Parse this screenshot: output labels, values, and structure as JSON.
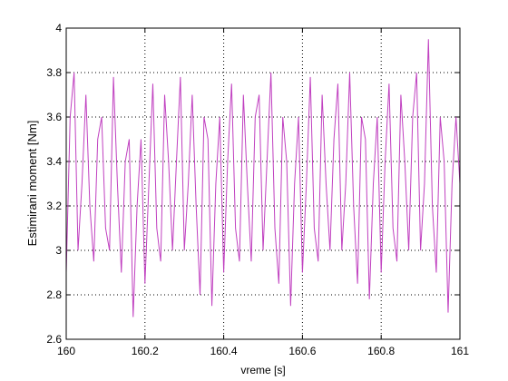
{
  "chart_data": {
    "type": "line",
    "xlabel": "vreme [s]",
    "ylabel": "Estimirani moment [Nm]",
    "x": [
      160,
      160.01,
      160.02,
      160.03,
      160.04,
      160.05,
      160.06,
      160.07,
      160.08,
      160.09,
      160.1,
      160.11,
      160.12,
      160.13,
      160.14,
      160.15,
      160.16,
      160.17,
      160.18,
      160.19,
      160.2,
      160.21,
      160.22,
      160.23,
      160.24,
      160.25,
      160.26,
      160.27,
      160.28,
      160.29,
      160.3,
      160.31,
      160.32,
      160.33,
      160.34,
      160.35,
      160.36,
      160.37,
      160.38,
      160.39,
      160.4,
      160.41,
      160.42,
      160.43,
      160.44,
      160.45,
      160.46,
      160.47,
      160.48,
      160.49,
      160.5,
      160.51,
      160.52,
      160.53,
      160.54,
      160.55,
      160.56,
      160.57,
      160.58,
      160.59,
      160.6,
      160.61,
      160.62,
      160.63,
      160.64,
      160.65,
      160.66,
      160.67,
      160.68,
      160.69,
      160.7,
      160.71,
      160.72,
      160.73,
      160.74,
      160.75,
      160.76,
      160.77,
      160.78,
      160.79,
      160.8,
      160.81,
      160.82,
      160.83,
      160.84,
      160.85,
      160.86,
      160.87,
      160.88,
      160.89,
      160.9,
      160.91,
      160.92,
      160.93,
      160.94,
      160.95,
      160.96,
      160.97,
      160.98,
      160.99,
      161
    ],
    "series": [
      {
        "color": "#c040c0",
        "values": [
          2.9,
          3.6,
          3.8,
          3.0,
          3.3,
          3.7,
          3.2,
          2.95,
          3.5,
          3.6,
          3.1,
          3.0,
          3.78,
          3.3,
          2.9,
          3.4,
          3.5,
          2.7,
          3.2,
          3.5,
          2.85,
          3.3,
          3.75,
          3.1,
          2.95,
          3.7,
          3.4,
          3.0,
          3.4,
          3.78,
          3.0,
          3.3,
          3.7,
          3.2,
          2.8,
          3.6,
          3.5,
          2.75,
          3.3,
          3.6,
          2.9,
          3.4,
          3.75,
          3.1,
          2.95,
          3.7,
          3.3,
          2.95,
          3.6,
          3.7,
          3.0,
          3.4,
          3.8,
          3.1,
          2.85,
          3.6,
          3.4,
          2.75,
          3.3,
          3.6,
          2.9,
          3.3,
          3.78,
          3.1,
          2.95,
          3.7,
          3.3,
          3.0,
          3.5,
          3.75,
          3.0,
          3.3,
          3.8,
          3.2,
          2.85,
          3.6,
          3.5,
          2.78,
          3.3,
          3.6,
          2.9,
          3.4,
          3.75,
          3.1,
          2.95,
          3.7,
          3.4,
          3.0,
          3.6,
          3.8,
          3.0,
          3.3,
          3.95,
          3.2,
          2.9,
          3.6,
          3.4,
          2.72,
          3.3,
          3.6,
          3.3
        ]
      }
    ],
    "xlim": [
      160,
      161
    ],
    "xticks": [
      160,
      160.2,
      160.4,
      160.6,
      160.8,
      161
    ],
    "ylim": [
      2.6,
      4
    ],
    "yticks": [
      2.6,
      2.8,
      3,
      3.2,
      3.4,
      3.6,
      3.8,
      4
    ],
    "grid": true
  }
}
